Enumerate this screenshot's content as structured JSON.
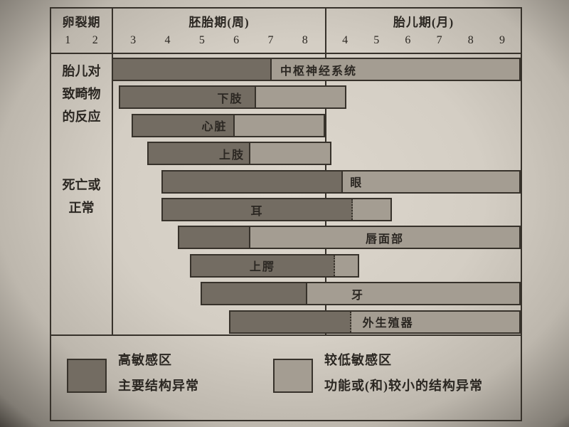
{
  "colors": {
    "bar_dark": "#736c62",
    "bar_light": "#a49d92",
    "line": "#37322b",
    "text": "#2b2722",
    "paper": "#d7d1c7"
  },
  "header": {
    "cleavage": {
      "title": "卵裂期",
      "ticks": [
        "1",
        "2"
      ]
    },
    "embryonic": {
      "title": "胚胎期(周)",
      "ticks": [
        "3",
        "4",
        "5",
        "6",
        "7",
        "8"
      ]
    },
    "fetal": {
      "title": "胎儿期(月)",
      "ticks": [
        "4",
        "5",
        "6",
        "7",
        "8",
        "9"
      ]
    }
  },
  "side_labels": [
    {
      "lines": [
        "胎儿对",
        "致畸物",
        "的反应"
      ]
    },
    {
      "lines": [
        "死亡或",
        "正常"
      ]
    }
  ],
  "legend": [
    {
      "swatch": "dark",
      "line1": "高敏感区",
      "line2": "主要结构异常"
    },
    {
      "swatch": "light",
      "line1": "较低敏感区",
      "line2": "功能或(和)较小的结构异常"
    }
  ],
  "chart_data": {
    "type": "bar",
    "subtype": "horizontal-critical-period-gantt",
    "title": "",
    "x_axis": {
      "segments": [
        {
          "label": "胚胎期(周)",
          "ticks": [
            "3",
            "4",
            "5",
            "6",
            "7",
            "8"
          ],
          "unit": "week"
        },
        {
          "label": "胎儿期(月)",
          "ticks": [
            "4",
            "5",
            "6",
            "7",
            "8",
            "9"
          ],
          "unit": "month"
        }
      ],
      "unit_scale": "0-6 = embryonic weeks 3-8 (1 unit = 1 week); 6-12 = fetal months 4-9 (1 unit = 1 month); divider at 6"
    },
    "legend_position": "bottom",
    "grid": false,
    "rows": [
      {
        "id": "cns",
        "label": "中枢神经系统",
        "start": 0,
        "dark_end": 4.5,
        "end": 12,
        "label_in": "light",
        "label_align": "left",
        "label_pad": 12,
        "divider_style": "solid"
      },
      {
        "id": "lower-limb",
        "label": "下肢",
        "start": 0.2,
        "dark_end": 4.05,
        "end": 6.65,
        "label_in": "dark",
        "label_align": "right",
        "label_pad": 16,
        "divider_style": "solid"
      },
      {
        "id": "heart",
        "label": "心脏",
        "start": 0.55,
        "dark_end": 3.45,
        "end": 6.0,
        "label_in": "dark",
        "label_align": "right",
        "label_pad": 8,
        "divider_style": "solid"
      },
      {
        "id": "upper-limb",
        "label": "上肢",
        "start": 1.0,
        "dark_end": 3.9,
        "end": 6.2,
        "label_in": "dark",
        "label_align": "right",
        "label_pad": 6,
        "divider_style": "solid"
      },
      {
        "id": "eye",
        "label": "眼",
        "start": 1.4,
        "dark_end": 6.55,
        "end": 12,
        "label_in": "light",
        "label_align": "left",
        "label_pad": 10,
        "divider_style": "solid"
      },
      {
        "id": "ear",
        "label": "耳",
        "start": 1.4,
        "dark_end": 6.85,
        "end": 8.05,
        "label_in": "dark",
        "label_align": "center",
        "label_pad": 0,
        "divider_style": "dotted"
      },
      {
        "id": "lip-face",
        "label": "唇面部",
        "start": 1.85,
        "dark_end": 3.9,
        "end": 12,
        "label_in": "light",
        "label_align": "center",
        "label_pad": 0,
        "divider_style": "solid"
      },
      {
        "id": "palate",
        "label": "上腭",
        "start": 2.2,
        "dark_end": 6.3,
        "end": 7.05,
        "label_in": "dark",
        "label_align": "center",
        "label_pad": 0,
        "divider_style": "dotted"
      },
      {
        "id": "teeth",
        "label": "牙",
        "start": 2.5,
        "dark_end": 5.5,
        "end": 12,
        "label_in": "light",
        "label_align": "left",
        "label_pad": 62,
        "divider_style": "solid"
      },
      {
        "id": "genitalia",
        "label": "外生殖器",
        "start": 3.3,
        "dark_end": 6.8,
        "end": 12,
        "label_in": "light",
        "label_align": "left",
        "label_pad": 16,
        "divider_style": "dotted"
      }
    ]
  }
}
